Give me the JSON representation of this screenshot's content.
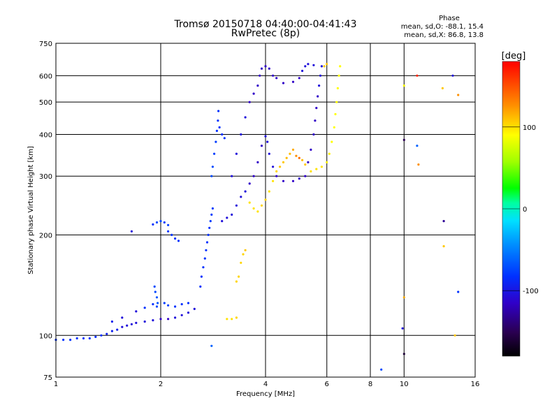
{
  "chart_data": {
    "type": "scatter",
    "title": "Tromsø 20150718 04:40:00-04:41:43",
    "subtitle": "RwPretec (8p)",
    "xlabel": "Frequency [MHz]",
    "ylabel": "Stationary phase Virtual Height [km]",
    "x_scale": "log",
    "y_scale": "log",
    "xlim": [
      1,
      16
    ],
    "ylim": [
      75,
      750
    ],
    "x_ticks": [
      1,
      2,
      4,
      6,
      8,
      10,
      16
    ],
    "y_ticks": [
      75,
      100,
      200,
      300,
      400,
      500,
      600,
      750
    ],
    "grid": true,
    "phase_box": {
      "title": "Phase",
      "line_o": "mean, sd,O: -88.1, 15.4",
      "line_x": "mean, sd,X: 86.8, 13.8"
    },
    "colorbar": {
      "label": "[deg]",
      "ticks": [
        100,
        0,
        -100
      ],
      "range": [
        -180,
        180
      ]
    },
    "series": [
      {
        "points": [
          [
            1.0,
            97,
            -100
          ],
          [
            1.05,
            97,
            -100
          ],
          [
            1.1,
            97,
            -100
          ],
          [
            1.15,
            98,
            -100
          ],
          [
            1.2,
            98,
            -100
          ],
          [
            1.25,
            98,
            -100
          ],
          [
            1.3,
            99,
            -100
          ],
          [
            1.35,
            100,
            -100
          ],
          [
            1.4,
            101,
            -105
          ],
          [
            1.45,
            103,
            -105
          ],
          [
            1.5,
            104,
            -105
          ],
          [
            1.55,
            106,
            -110
          ],
          [
            1.6,
            107,
            -110
          ],
          [
            1.65,
            108,
            -110
          ],
          [
            1.7,
            109,
            -110
          ],
          [
            1.8,
            110,
            -110
          ],
          [
            1.9,
            111,
            -110
          ],
          [
            2.0,
            112,
            -115
          ],
          [
            2.1,
            112,
            -115
          ],
          [
            2.2,
            113,
            -110
          ],
          [
            2.3,
            115,
            -110
          ],
          [
            2.4,
            117,
            -110
          ],
          [
            2.5,
            120,
            -110
          ],
          [
            1.45,
            110,
            -105
          ],
          [
            1.55,
            113,
            -110
          ],
          [
            1.7,
            118,
            -110
          ],
          [
            1.8,
            121,
            -100
          ],
          [
            1.9,
            124,
            -100
          ],
          [
            1.95,
            122,
            -90
          ],
          [
            2.05,
            125,
            -95
          ],
          [
            2.1,
            123,
            -95
          ],
          [
            2.2,
            122,
            -100
          ],
          [
            2.3,
            124,
            -100
          ],
          [
            2.4,
            125,
            -100
          ],
          [
            1.65,
            205,
            -110
          ],
          [
            1.9,
            215,
            -100
          ],
          [
            1.95,
            218,
            -90
          ],
          [
            2.0,
            220,
            -90
          ],
          [
            2.05,
            218,
            -95
          ],
          [
            2.1,
            214,
            -95
          ],
          [
            2.1,
            205,
            -100
          ],
          [
            2.15,
            200,
            -100
          ],
          [
            2.2,
            195,
            -100
          ],
          [
            2.25,
            192,
            -100
          ],
          [
            1.92,
            140,
            -90
          ],
          [
            1.93,
            135,
            -90
          ],
          [
            1.95,
            130,
            -85
          ],
          [
            1.96,
            125,
            -85
          ],
          [
            2.6,
            140,
            -100
          ],
          [
            2.62,
            150,
            -100
          ],
          [
            2.65,
            160,
            -100
          ],
          [
            2.68,
            170,
            -100
          ],
          [
            2.7,
            180,
            -100
          ],
          [
            2.72,
            190,
            -100
          ],
          [
            2.74,
            200,
            -100
          ],
          [
            2.76,
            210,
            -100
          ],
          [
            2.78,
            220,
            -95
          ],
          [
            2.8,
            230,
            -95
          ],
          [
            2.82,
            240,
            -95
          ],
          [
            2.8,
            300,
            -90
          ],
          [
            2.82,
            320,
            -90
          ],
          [
            2.85,
            350,
            -95
          ],
          [
            2.88,
            380,
            -95
          ],
          [
            2.9,
            410,
            -100
          ],
          [
            2.92,
            440,
            -100
          ],
          [
            2.93,
            470,
            -100
          ],
          [
            2.95,
            420,
            -100
          ],
          [
            3.0,
            400,
            -100
          ],
          [
            3.05,
            390,
            -100
          ],
          [
            3.0,
            220,
            -110
          ],
          [
            3.1,
            225,
            -110
          ],
          [
            3.2,
            230,
            -110
          ],
          [
            3.3,
            245,
            -110
          ],
          [
            3.4,
            260,
            -110
          ],
          [
            3.5,
            270,
            -110
          ],
          [
            3.6,
            285,
            -115
          ],
          [
            3.7,
            300,
            -115
          ],
          [
            3.8,
            330,
            -115
          ],
          [
            3.9,
            370,
            -115
          ],
          [
            4.0,
            395,
            -110
          ],
          [
            4.05,
            380,
            -110
          ],
          [
            4.1,
            350,
            -110
          ],
          [
            4.2,
            320,
            -110
          ],
          [
            4.3,
            300,
            -115
          ],
          [
            4.5,
            290,
            -115
          ],
          [
            4.8,
            290,
            -115
          ],
          [
            5.0,
            295,
            -115
          ],
          [
            5.2,
            300,
            -115
          ],
          [
            5.3,
            330,
            -115
          ],
          [
            5.4,
            360,
            -115
          ],
          [
            5.5,
            400,
            -115
          ],
          [
            5.55,
            440,
            -115
          ],
          [
            5.6,
            480,
            -115
          ],
          [
            5.65,
            520,
            -115
          ],
          [
            5.7,
            560,
            -110
          ],
          [
            5.75,
            600,
            -110
          ],
          [
            5.8,
            640,
            -110
          ],
          [
            3.2,
            300,
            -110
          ],
          [
            3.3,
            350,
            -110
          ],
          [
            3.4,
            400,
            -110
          ],
          [
            3.5,
            450,
            -110
          ],
          [
            3.6,
            500,
            -115
          ],
          [
            3.7,
            530,
            -115
          ],
          [
            3.8,
            560,
            -115
          ],
          [
            3.85,
            600,
            -115
          ],
          [
            3.9,
            630,
            -115
          ],
          [
            4.0,
            640,
            -115
          ],
          [
            4.1,
            630,
            -115
          ],
          [
            4.2,
            600,
            -115
          ],
          [
            4.3,
            590,
            -115
          ],
          [
            4.5,
            570,
            -115
          ],
          [
            4.8,
            575,
            -115
          ],
          [
            5.0,
            590,
            -115
          ],
          [
            5.1,
            620,
            -110
          ],
          [
            5.2,
            640,
            -110
          ],
          [
            5.3,
            650,
            -110
          ],
          [
            5.5,
            645,
            -110
          ],
          [
            3.6,
            250,
            110
          ],
          [
            3.7,
            240,
            110
          ],
          [
            3.8,
            235,
            110
          ],
          [
            3.9,
            245,
            115
          ],
          [
            4.0,
            255,
            115
          ],
          [
            4.1,
            270,
            110
          ],
          [
            4.2,
            290,
            110
          ],
          [
            4.3,
            310,
            115
          ],
          [
            4.4,
            320,
            120
          ],
          [
            4.5,
            330,
            120
          ],
          [
            4.6,
            340,
            125
          ],
          [
            4.7,
            350,
            125
          ],
          [
            4.8,
            360,
            130
          ],
          [
            4.9,
            345,
            140
          ],
          [
            5.0,
            340,
            150
          ],
          [
            5.1,
            335,
            125
          ],
          [
            5.2,
            325,
            120
          ],
          [
            5.4,
            310,
            110
          ],
          [
            5.6,
            315,
            110
          ],
          [
            5.8,
            320,
            110
          ],
          [
            6.0,
            330,
            105
          ],
          [
            6.1,
            350,
            105
          ],
          [
            6.2,
            380,
            100
          ],
          [
            6.3,
            420,
            100
          ],
          [
            6.35,
            460,
            100
          ],
          [
            6.4,
            500,
            100
          ],
          [
            6.45,
            550,
            100
          ],
          [
            6.5,
            600,
            100
          ],
          [
            6.55,
            640,
            100
          ],
          [
            5.9,
            640,
            120
          ],
          [
            6.0,
            650,
            120
          ],
          [
            3.1,
            112,
            110
          ],
          [
            3.2,
            112,
            110
          ],
          [
            3.3,
            113,
            115
          ],
          [
            3.4,
            165,
            115
          ],
          [
            3.45,
            175,
            115
          ],
          [
            3.5,
            180,
            120
          ],
          [
            3.3,
            145,
            115
          ],
          [
            3.35,
            150,
            115
          ],
          [
            2.8,
            93,
            -80
          ],
          [
            8.6,
            79,
            -90
          ],
          [
            9.9,
            105,
            -110
          ],
          [
            10.0,
            88,
            -160
          ],
          [
            10.0,
            385,
            -150
          ],
          [
            10.9,
            370,
            -80
          ],
          [
            11.0,
            325,
            140
          ],
          [
            10.0,
            560,
            100
          ],
          [
            10.9,
            600,
            170
          ],
          [
            12.9,
            550,
            120
          ],
          [
            13.0,
            185,
            120
          ],
          [
            13.0,
            220,
            -130
          ],
          [
            13.8,
            600,
            -110
          ],
          [
            14.3,
            525,
            140
          ],
          [
            14.3,
            135,
            -100
          ],
          [
            14.0,
            100,
            120
          ],
          [
            10.0,
            130,
            130
          ]
        ]
      }
    ]
  }
}
